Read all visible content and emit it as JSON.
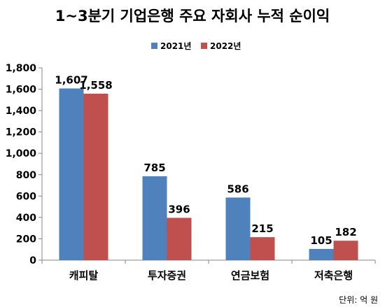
{
  "chart_data": {
    "type": "bar",
    "title": "1~3분기 기업은행 주요 자회사 누적 순이익",
    "categories": [
      "캐피탈",
      "투자증권",
      "연금보험",
      "저축은행"
    ],
    "series": [
      {
        "name": "2021년",
        "color": "#4f81bd",
        "values": [
          1607,
          785,
          586,
          105
        ]
      },
      {
        "name": "2022년",
        "color": "#c0504d",
        "values": [
          1558,
          396,
          215,
          182
        ]
      }
    ],
    "data_labels": [
      [
        "1,607",
        "785",
        "586",
        "105"
      ],
      [
        "1,558",
        "396",
        "215",
        "182"
      ]
    ],
    "yticks": [
      "0",
      "200",
      "400",
      "600",
      "800",
      "1,000",
      "1,200",
      "1,400",
      "1,600",
      "1,800"
    ],
    "ylim": [
      0,
      1800
    ],
    "xlabel": "",
    "ylabel": "",
    "legend_position": "top-center",
    "grid": false,
    "unit_note": "단위: 억 원"
  }
}
